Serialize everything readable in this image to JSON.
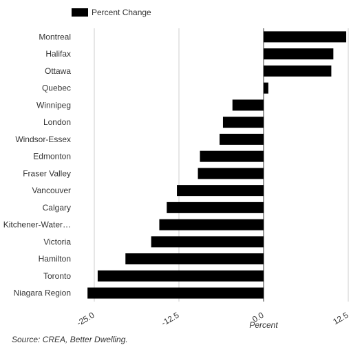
{
  "chart_data": {
    "type": "bar",
    "orientation": "horizontal",
    "categories": [
      "Montreal",
      "Halifax",
      "Ottawa",
      "Quebec",
      "Winnipeg",
      "London",
      "Windsor-Essex",
      "Edmonton",
      "Fraser Valley",
      "Vancouver",
      "Calgary",
      "Kitchener-Water…",
      "Victoria",
      "Hamilton",
      "Toronto",
      "Niagara Region"
    ],
    "series": [
      {
        "name": "Percent Change",
        "values": [
          12.2,
          10.3,
          10.0,
          0.7,
          -4.6,
          -6.0,
          -6.5,
          -9.4,
          -9.7,
          -12.8,
          -14.3,
          -15.4,
          -16.6,
          -20.4,
          -24.5,
          -26.0
        ]
      }
    ],
    "xlabel": "Percent",
    "ylabel": "",
    "xlim": [
      -25.0,
      12.5
    ],
    "xticks": [
      "-25.0",
      "-12.5",
      "0.0",
      "12.5"
    ],
    "grid": true,
    "legend_position": "top-left",
    "bar_color": "#000000"
  },
  "source": "Source: CREA, Better Dwelling."
}
